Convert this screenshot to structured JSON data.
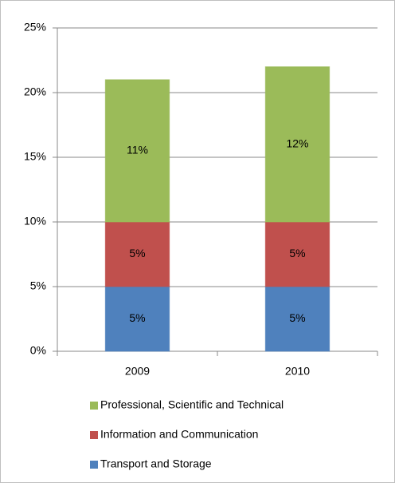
{
  "chart_data": {
    "type": "bar",
    "stacked": true,
    "categories": [
      "2009",
      "2010"
    ],
    "series": [
      {
        "name": "Transport and Storage",
        "color": "#4f81bd",
        "values": [
          5,
          5
        ],
        "value_labels": [
          "5%",
          "5%"
        ]
      },
      {
        "name": "Information and Communication",
        "color": "#c0504d",
        "values": [
          5,
          5
        ],
        "value_labels": [
          "5%",
          "5%"
        ]
      },
      {
        "name": "Professional, Scientific and Technical",
        "color": "#9bbb59",
        "values": [
          11,
          12
        ],
        "value_labels": [
          "11%",
          "12%"
        ]
      }
    ],
    "ylim": [
      0,
      25
    ],
    "yticks": [
      {
        "value": 0,
        "label": "0%"
      },
      {
        "value": 5,
        "label": "5%"
      },
      {
        "value": 10,
        "label": "10%"
      },
      {
        "value": 15,
        "label": "15%"
      },
      {
        "value": 20,
        "label": "20%"
      },
      {
        "value": 25,
        "label": "25%"
      }
    ],
    "grid": true,
    "legend": "bottom"
  }
}
